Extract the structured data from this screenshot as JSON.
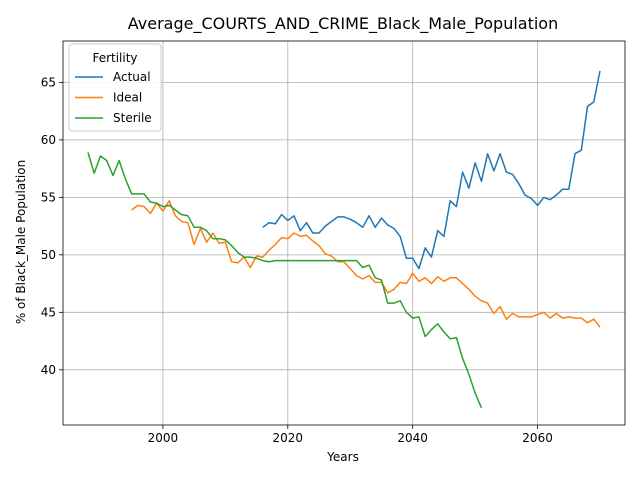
{
  "chart_data": {
    "type": "line",
    "title": "Average_COURTS_AND_CRIME_Black_Male_Population",
    "xlabel": "Years",
    "ylabel": "% of Black_Male Population",
    "xlim": [
      1984,
      2074
    ],
    "ylim": [
      35.2,
      68.6
    ],
    "xticks": [
      2000,
      2020,
      2040,
      2060
    ],
    "yticks": [
      40,
      45,
      50,
      55,
      60,
      65
    ],
    "grid": true,
    "legend": {
      "title": "Fertility",
      "placement": "top-left"
    },
    "series": [
      {
        "name": "Actual",
        "color": "#1f77b4",
        "x": [
          2016,
          2017,
          2018,
          2019,
          2020,
          2021,
          2022,
          2023,
          2024,
          2025,
          2026,
          2027,
          2028,
          2029,
          2030,
          2031,
          2032,
          2033,
          2034,
          2035,
          2036,
          2037,
          2038,
          2039,
          2040,
          2041,
          2042,
          2043,
          2044,
          2045,
          2046,
          2047,
          2048,
          2049,
          2050,
          2051,
          2052,
          2053,
          2054,
          2055,
          2056,
          2057,
          2058,
          2059,
          2060,
          2061,
          2062,
          2063,
          2064,
          2065,
          2066,
          2067,
          2068,
          2069,
          2070
        ],
        "y": [
          52.4,
          52.8,
          52.7,
          53.5,
          53.0,
          53.4,
          52.1,
          52.8,
          51.9,
          51.9,
          52.5,
          52.9,
          53.3,
          53.3,
          53.1,
          52.8,
          52.4,
          53.4,
          52.4,
          53.2,
          52.6,
          52.3,
          51.6,
          49.7,
          49.7,
          48.8,
          50.6,
          49.8,
          52.1,
          51.6,
          54.7,
          54.2,
          57.2,
          55.8,
          58.0,
          56.4,
          58.8,
          57.3,
          58.8,
          57.2,
          57.0,
          56.2,
          55.2,
          54.9,
          54.3,
          55.0,
          54.8,
          55.2,
          55.7,
          55.7,
          58.8,
          59.1,
          62.9,
          63.3,
          66.0
        ]
      },
      {
        "name": "Ideal",
        "color": "#ff7f0e",
        "x": [
          1995,
          1996,
          1997,
          1998,
          1999,
          2000,
          2001,
          2002,
          2003,
          2004,
          2005,
          2006,
          2007,
          2008,
          2009,
          2010,
          2011,
          2012,
          2013,
          2014,
          2015,
          2016,
          2017,
          2018,
          2019,
          2020,
          2021,
          2022,
          2023,
          2024,
          2025,
          2026,
          2027,
          2028,
          2029,
          2030,
          2031,
          2032,
          2033,
          2034,
          2035,
          2036,
          2037,
          2038,
          2039,
          2040,
          2041,
          2042,
          2043,
          2044,
          2045,
          2046,
          2047,
          2048,
          2049,
          2050,
          2051,
          2052,
          2053,
          2054,
          2055,
          2056,
          2057,
          2058,
          2059,
          2060,
          2061,
          2062,
          2063,
          2064,
          2065,
          2066,
          2067,
          2068,
          2069,
          2070
        ],
        "y": [
          53.9,
          54.3,
          54.2,
          53.6,
          54.5,
          53.8,
          54.7,
          53.4,
          52.9,
          52.8,
          50.9,
          52.3,
          51.1,
          51.9,
          51.0,
          51.1,
          49.4,
          49.3,
          49.8,
          48.9,
          49.9,
          49.8,
          50.4,
          50.9,
          51.5,
          51.4,
          51.9,
          51.6,
          51.7,
          51.2,
          50.8,
          50.1,
          49.9,
          49.4,
          49.4,
          48.8,
          48.2,
          47.9,
          48.2,
          47.6,
          47.6,
          46.7,
          47.0,
          47.6,
          47.5,
          48.4,
          47.7,
          48.0,
          47.5,
          48.1,
          47.7,
          48.0,
          48.0,
          47.5,
          47.0,
          46.4,
          46.0,
          45.8,
          44.9,
          45.5,
          44.4,
          44.9,
          44.6,
          44.6,
          44.6,
          44.8,
          45.0,
          44.5,
          44.9,
          44.5,
          44.6,
          44.5,
          44.5,
          44.1,
          44.4,
          43.7
        ]
      },
      {
        "name": "Sterile",
        "color": "#2ca02c",
        "x": [
          1988,
          1989,
          1990,
          1991,
          1992,
          1993,
          1994,
          1995,
          1996,
          1997,
          1998,
          1999,
          2000,
          2001,
          2002,
          2003,
          2004,
          2005,
          2006,
          2007,
          2008,
          2009,
          2010,
          2011,
          2012,
          2013,
          2014,
          2015,
          2016,
          2017,
          2018,
          2019,
          2020,
          2021,
          2022,
          2023,
          2024,
          2025,
          2026,
          2027,
          2028,
          2029,
          2030,
          2031,
          2032,
          2033,
          2034,
          2035,
          2036,
          2037,
          2038,
          2039,
          2040,
          2041,
          2042,
          2043,
          2044,
          2045,
          2046,
          2047,
          2048,
          2049,
          2050,
          2051
        ],
        "y": [
          58.9,
          57.1,
          58.6,
          58.2,
          56.9,
          58.2,
          56.6,
          55.3,
          55.3,
          55.3,
          54.6,
          54.5,
          54.2,
          54.3,
          53.9,
          53.5,
          53.4,
          52.4,
          52.4,
          52.1,
          51.4,
          51.4,
          51.3,
          50.8,
          50.2,
          49.8,
          49.8,
          49.7,
          49.5,
          49.4,
          49.5,
          49.5,
          49.5,
          49.5,
          49.5,
          49.5,
          49.5,
          49.5,
          49.5,
          49.5,
          49.5,
          49.5,
          49.5,
          49.5,
          48.9,
          49.1,
          48.0,
          47.8,
          45.8,
          45.8,
          46.0,
          45.0,
          44.5,
          44.6,
          42.9,
          43.5,
          44.0,
          43.3,
          42.7,
          42.8,
          41.0,
          39.6,
          38.0,
          36.7
        ]
      }
    ]
  }
}
